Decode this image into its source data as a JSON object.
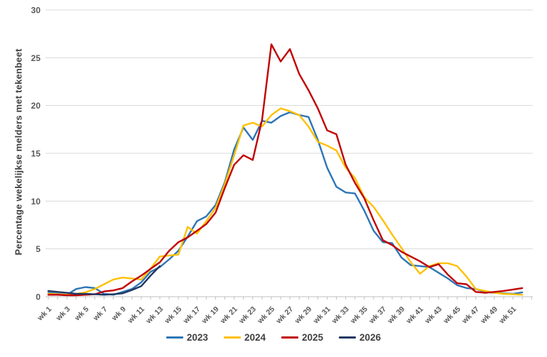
{
  "chart_data": {
    "type": "line",
    "title": "",
    "xlabel": "",
    "ylabel": "Percentage wekelijkse melders met tekenbeet",
    "ylim": [
      0,
      30
    ],
    "y_ticks": [
      0,
      5,
      10,
      15,
      20,
      25,
      30
    ],
    "grid": true,
    "legend_position": "bottom",
    "x_unit": "week",
    "x_tick_labels": [
      "wk 1",
      "wk 3",
      "wk 5",
      "wk 7",
      "wk 9",
      "wk 11",
      "wk 13",
      "wk 15",
      "wk 17",
      "wk 19",
      "wk 21",
      "wk 23",
      "wk 25",
      "wk 27",
      "wk 29",
      "wk 31",
      "wk 33",
      "wk 35",
      "wk 37",
      "wk 39",
      "wk 41",
      "wk 43",
      "wk 45",
      "wk 47",
      "wk 49",
      "wk 51"
    ],
    "series": [
      {
        "name": "2023",
        "color": "#2E75B6",
        "start_week": 1,
        "values": [
          0.4,
          0.3,
          0.2,
          0.8,
          1.0,
          0.9,
          0.3,
          0.2,
          0.5,
          0.8,
          1.5,
          2.6,
          3.1,
          3.9,
          4.8,
          6.3,
          7.9,
          8.4,
          9.6,
          12.0,
          15.4,
          17.7,
          16.4,
          18.4,
          18.2,
          18.9,
          19.3,
          19.0,
          18.8,
          16.4,
          13.5,
          11.5,
          10.9,
          10.8,
          9.0,
          6.9,
          5.7,
          5.6,
          4.1,
          3.3,
          3.2,
          3.1,
          2.5,
          1.9,
          1.2,
          0.9,
          0.8,
          0.5,
          0.4,
          0.35,
          0.3,
          0.45
        ]
      },
      {
        "name": "2024",
        "color": "#FFC000",
        "start_week": 1,
        "values": [
          0.3,
          0.25,
          0.2,
          0.3,
          0.45,
          0.8,
          1.3,
          1.8,
          2.0,
          1.9,
          1.8,
          2.9,
          4.2,
          4.3,
          4.4,
          7.3,
          6.6,
          7.9,
          9.3,
          11.8,
          14.8,
          17.9,
          18.2,
          17.8,
          19.0,
          19.7,
          19.4,
          19.0,
          17.8,
          16.2,
          15.8,
          15.3,
          13.5,
          12.4,
          10.4,
          9.4,
          8.0,
          6.5,
          5.1,
          3.6,
          2.4,
          3.2,
          3.5,
          3.5,
          3.2,
          2.1,
          0.8,
          0.6,
          0.4,
          0.3,
          0.25,
          0.2
        ]
      },
      {
        "name": "2025",
        "color": "#C00000",
        "start_week": 1,
        "values": [
          0.2,
          0.2,
          0.15,
          0.15,
          0.2,
          0.25,
          0.55,
          0.65,
          0.9,
          1.6,
          2.2,
          2.9,
          3.6,
          4.8,
          5.7,
          6.2,
          6.9,
          7.6,
          8.8,
          11.4,
          13.8,
          14.8,
          14.3,
          18.5,
          26.4,
          24.6,
          25.9,
          23.3,
          21.6,
          19.7,
          17.4,
          17.0,
          13.8,
          11.9,
          10.3,
          8.0,
          5.9,
          5.4,
          4.7,
          4.2,
          3.7,
          3.1,
          3.4,
          2.3,
          1.4,
          1.3,
          0.5,
          0.4,
          0.5,
          0.6,
          0.75,
          0.9
        ]
      },
      {
        "name": "2026",
        "color": "#1F3864",
        "start_week": 1,
        "values": [
          0.6,
          0.5,
          0.4,
          0.3,
          0.3,
          0.25,
          0.2,
          0.25,
          0.35,
          0.7,
          1.1,
          2.2,
          3.2
        ]
      }
    ]
  },
  "legend": {
    "items": [
      "2023",
      "2024",
      "2025",
      "2026"
    ]
  }
}
